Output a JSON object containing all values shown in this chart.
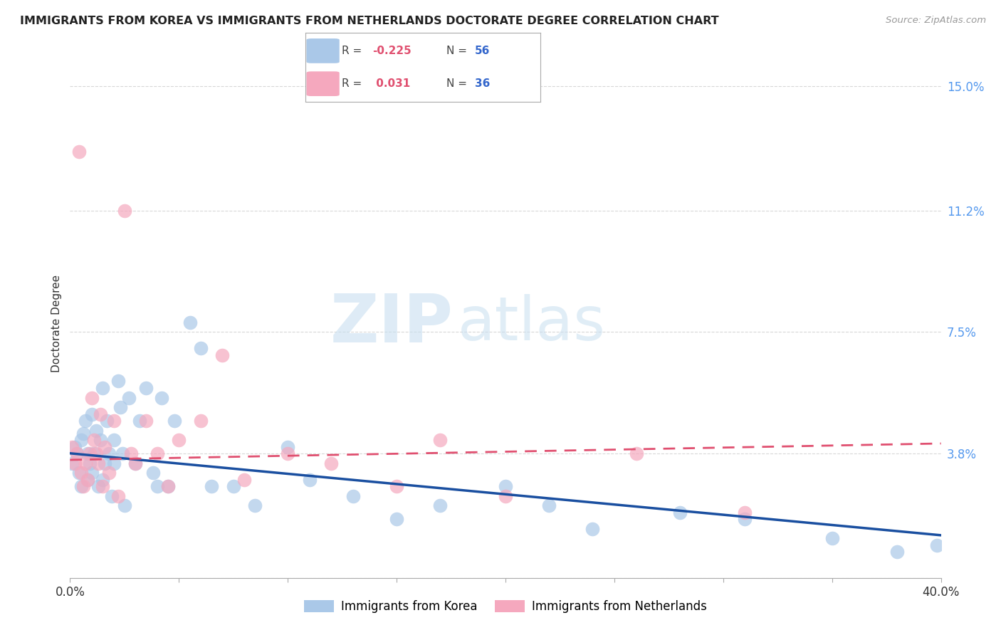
{
  "title": "IMMIGRANTS FROM KOREA VS IMMIGRANTS FROM NETHERLANDS DOCTORATE DEGREE CORRELATION CHART",
  "source": "Source: ZipAtlas.com",
  "ylabel": "Doctorate Degree",
  "xlim": [
    0.0,
    0.4
  ],
  "ylim": [
    0.0,
    0.155
  ],
  "ytick_values": [
    0.0,
    0.038,
    0.075,
    0.112,
    0.15
  ],
  "xtick_values": [
    0.0,
    0.05,
    0.1,
    0.15,
    0.2,
    0.25,
    0.3,
    0.35,
    0.4
  ],
  "korea_R": -0.225,
  "korea_N": 56,
  "netherlands_R": 0.031,
  "netherlands_N": 36,
  "korea_color": "#aac8e8",
  "netherlands_color": "#f5a8be",
  "korea_line_color": "#1a4fa0",
  "netherlands_line_color": "#e05070",
  "watermark_zip": "ZIP",
  "watermark_atlas": "atlas",
  "legend_korea_label": "Immigrants from Korea",
  "legend_netherlands_label": "Immigrants from Netherlands",
  "korea_line_x0": 0.0,
  "korea_line_y0": 0.038,
  "korea_line_x1": 0.4,
  "korea_line_y1": 0.013,
  "neth_line_x0": 0.0,
  "neth_line_y0": 0.036,
  "neth_line_x1": 0.4,
  "neth_line_y1": 0.041,
  "korea_x": [
    0.001,
    0.002,
    0.003,
    0.004,
    0.005,
    0.005,
    0.006,
    0.007,
    0.008,
    0.008,
    0.009,
    0.01,
    0.01,
    0.011,
    0.012,
    0.013,
    0.014,
    0.015,
    0.015,
    0.016,
    0.017,
    0.018,
    0.019,
    0.02,
    0.02,
    0.022,
    0.023,
    0.024,
    0.025,
    0.027,
    0.03,
    0.032,
    0.035,
    0.038,
    0.04,
    0.042,
    0.045,
    0.048,
    0.055,
    0.06,
    0.065,
    0.075,
    0.085,
    0.1,
    0.11,
    0.13,
    0.15,
    0.17,
    0.2,
    0.22,
    0.24,
    0.28,
    0.31,
    0.35,
    0.38,
    0.398
  ],
  "korea_y": [
    0.035,
    0.04,
    0.038,
    0.032,
    0.042,
    0.028,
    0.044,
    0.048,
    0.03,
    0.038,
    0.035,
    0.05,
    0.032,
    0.038,
    0.045,
    0.028,
    0.042,
    0.03,
    0.058,
    0.035,
    0.048,
    0.038,
    0.025,
    0.042,
    0.035,
    0.06,
    0.052,
    0.038,
    0.022,
    0.055,
    0.035,
    0.048,
    0.058,
    0.032,
    0.028,
    0.055,
    0.028,
    0.048,
    0.078,
    0.07,
    0.028,
    0.028,
    0.022,
    0.04,
    0.03,
    0.025,
    0.018,
    0.022,
    0.028,
    0.022,
    0.015,
    0.02,
    0.018,
    0.012,
    0.008,
    0.01
  ],
  "netherlands_x": [
    0.001,
    0.002,
    0.003,
    0.004,
    0.005,
    0.006,
    0.007,
    0.008,
    0.009,
    0.01,
    0.011,
    0.012,
    0.013,
    0.014,
    0.015,
    0.016,
    0.018,
    0.02,
    0.022,
    0.025,
    0.028,
    0.03,
    0.035,
    0.04,
    0.045,
    0.05,
    0.06,
    0.07,
    0.08,
    0.1,
    0.12,
    0.15,
    0.17,
    0.2,
    0.26,
    0.31
  ],
  "netherlands_y": [
    0.04,
    0.035,
    0.038,
    0.13,
    0.032,
    0.028,
    0.035,
    0.03,
    0.038,
    0.055,
    0.042,
    0.038,
    0.035,
    0.05,
    0.028,
    0.04,
    0.032,
    0.048,
    0.025,
    0.112,
    0.038,
    0.035,
    0.048,
    0.038,
    0.028,
    0.042,
    0.048,
    0.068,
    0.03,
    0.038,
    0.035,
    0.028,
    0.042,
    0.025,
    0.038,
    0.02
  ]
}
